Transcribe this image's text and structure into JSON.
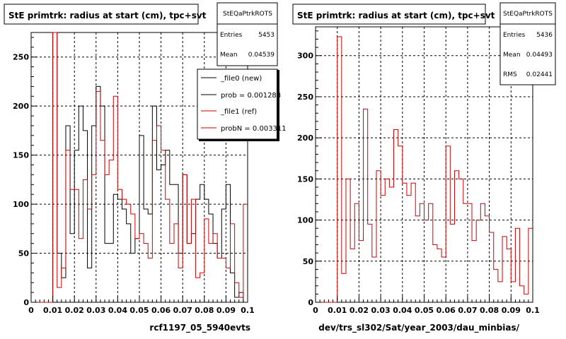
{
  "footer_text": "",
  "chart_data": [
    {
      "type": "step",
      "title": "StE primtrk: radius at start (cm), tpc+svt",
      "xlabel": "rcf1197_05_5940evts",
      "ylabel": "",
      "xlim": [
        0,
        0.1
      ],
      "ylim": [
        0,
        275
      ],
      "xticks": [
        "0",
        "0.01",
        "0.02",
        "0.03",
        "0.04",
        "0.05",
        "0.06",
        "0.07",
        "0.08",
        "0.09",
        "0.1"
      ],
      "yticks": [
        "0",
        "50",
        "100",
        "150",
        "200",
        "250"
      ],
      "grid": true,
      "stats": {
        "name": "StEQaPtrkROTS",
        "entries_label": "Entries",
        "entries": "5453",
        "mean_label": "Mean",
        "mean": "0.04539"
      },
      "legend": {
        "placement": "top-right",
        "entries": [
          {
            "label": "_file0 (new)",
            "color": "#000000"
          },
          {
            "label": "prob = 0.001288",
            "color": "#000000"
          },
          {
            "label": "_file1 (ref)",
            "color": "#cc0000"
          },
          {
            "label": "probN = 0.003311",
            "color": "#cc0000"
          }
        ]
      },
      "bins": {
        "x0": 0.0,
        "width": 0.002
      },
      "series": [
        {
          "name": "_file0 (new)",
          "color": "#000000",
          "values": [
            0,
            0,
            0,
            0,
            0,
            275,
            50,
            25,
            180,
            70,
            155,
            200,
            175,
            35,
            180,
            220,
            200,
            60,
            60,
            110,
            105,
            95,
            80,
            50,
            65,
            170,
            95,
            90,
            200,
            135,
            140,
            155,
            120,
            120,
            50,
            130,
            60,
            70,
            105,
            120,
            105,
            90,
            60,
            45,
            95,
            120,
            30,
            5,
            10,
            0
          ]
        },
        {
          "name": "_file1 (ref)",
          "color": "#cc0000",
          "values": [
            0,
            0,
            0,
            0,
            0,
            275,
            15,
            35,
            155,
            115,
            115,
            65,
            125,
            95,
            130,
            215,
            165,
            130,
            145,
            210,
            115,
            105,
            100,
            90,
            65,
            70,
            60,
            45,
            165,
            180,
            155,
            105,
            60,
            80,
            35,
            130,
            60,
            105,
            25,
            30,
            85,
            60,
            70,
            45,
            45,
            35,
            80,
            20,
            5,
            100
          ]
        }
      ]
    },
    {
      "type": "step",
      "title": "StE primtrk: radius at start (cm), tpc+svt",
      "xlabel": "dev/trs_sl302/Sat/year_2003/dau_minbias/",
      "ylabel": "",
      "xlim": [
        0,
        0.1
      ],
      "ylim": [
        0,
        335
      ],
      "xticks": [
        "0",
        "0.01",
        "0.02",
        "0.03",
        "0.04",
        "0.05",
        "0.06",
        "0.07",
        "0.08",
        "0.09",
        "0.1"
      ],
      "yticks": [
        "0",
        "50",
        "100",
        "150",
        "200",
        "250",
        "300"
      ],
      "grid": true,
      "stats": {
        "name": "StEQaPtrkROTS",
        "entries_label": "Entries",
        "entries": "5436",
        "mean_label": "Mean",
        "mean": "0.04493",
        "rms_label": "RMS",
        "rms": "0.02441"
      },
      "bins": {
        "x0": 0.0,
        "width": 0.002
      },
      "series": [
        {
          "name": "_file1 (ref)",
          "color": "#cc0000",
          "values": [
            0,
            0,
            0,
            0,
            0,
            323,
            35,
            150,
            65,
            120,
            75,
            235,
            95,
            55,
            160,
            130,
            150,
            140,
            210,
            190,
            145,
            130,
            145,
            105,
            120,
            100,
            120,
            70,
            65,
            55,
            190,
            95,
            160,
            150,
            120,
            120,
            75,
            100,
            120,
            105,
            85,
            40,
            25,
            80,
            65,
            25,
            90,
            20,
            10,
            90
          ]
        }
      ]
    }
  ]
}
